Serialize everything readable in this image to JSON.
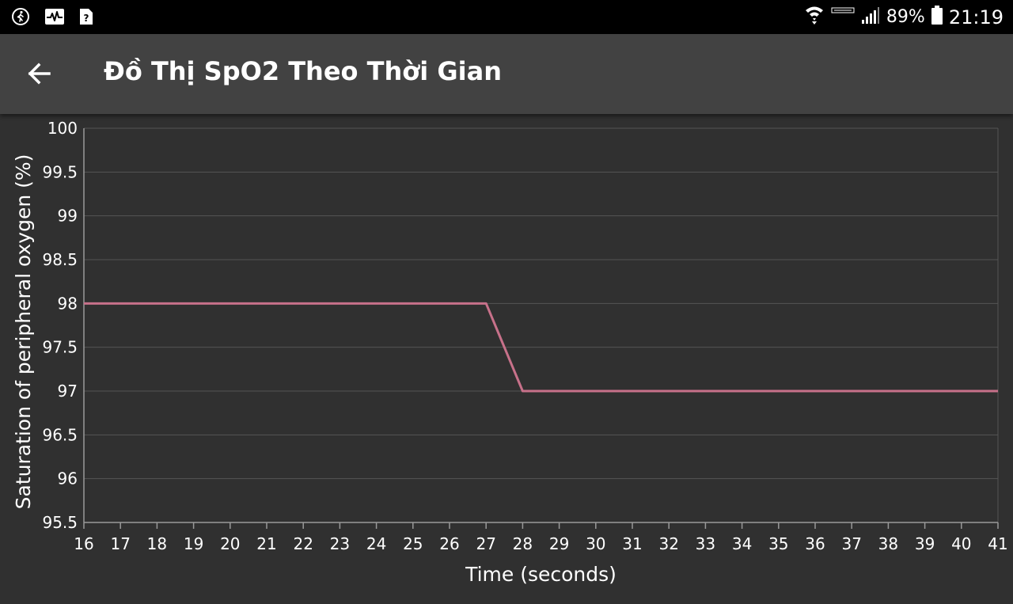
{
  "status_bar": {
    "left_icons": [
      "walk-icon",
      "activity-pulse-icon",
      "unknown-file-icon"
    ],
    "battery_percent": "89%",
    "time": "21:19",
    "right_icons": [
      "wifi-icon",
      "data-icon",
      "signal-icon",
      "battery-icon"
    ]
  },
  "app_bar": {
    "back_icon": "arrow-left-icon",
    "title": "Đồ Thị SpO2 Theo Thời Gian"
  },
  "colors": {
    "background": "#303030",
    "app_bar": "#424242",
    "grid": "#555555",
    "axis": "#999999",
    "text": "#ffffff",
    "line": "#c7718a"
  },
  "chart_data": {
    "type": "line",
    "xlabel": "Time (seconds)",
    "ylabel": "Saturation of peripheral oxygen (%)",
    "ylim": [
      95.5,
      100
    ],
    "xlim": [
      16,
      41
    ],
    "x_ticks": [
      16,
      17,
      18,
      19,
      20,
      21,
      22,
      23,
      24,
      25,
      26,
      27,
      28,
      29,
      30,
      31,
      32,
      33,
      34,
      35,
      36,
      37,
      38,
      39,
      40,
      41
    ],
    "y_ticks": [
      "95.5",
      "96",
      "96.5",
      "97",
      "97.5",
      "98",
      "98.5",
      "99",
      "99.5",
      "100"
    ],
    "grid": true,
    "legend": "none",
    "series": [
      {
        "x": [
          16,
          17,
          18,
          19,
          20,
          21,
          22,
          23,
          24,
          25,
          26,
          27,
          28,
          29,
          30,
          31,
          32,
          33,
          34,
          35,
          36,
          37,
          38,
          39,
          40,
          41
        ],
        "values": [
          98,
          98,
          98,
          98,
          98,
          98,
          98,
          98,
          98,
          98,
          98,
          98,
          97,
          97,
          97,
          97,
          97,
          97,
          97,
          97,
          97,
          97,
          97,
          97,
          97,
          97
        ]
      }
    ]
  }
}
